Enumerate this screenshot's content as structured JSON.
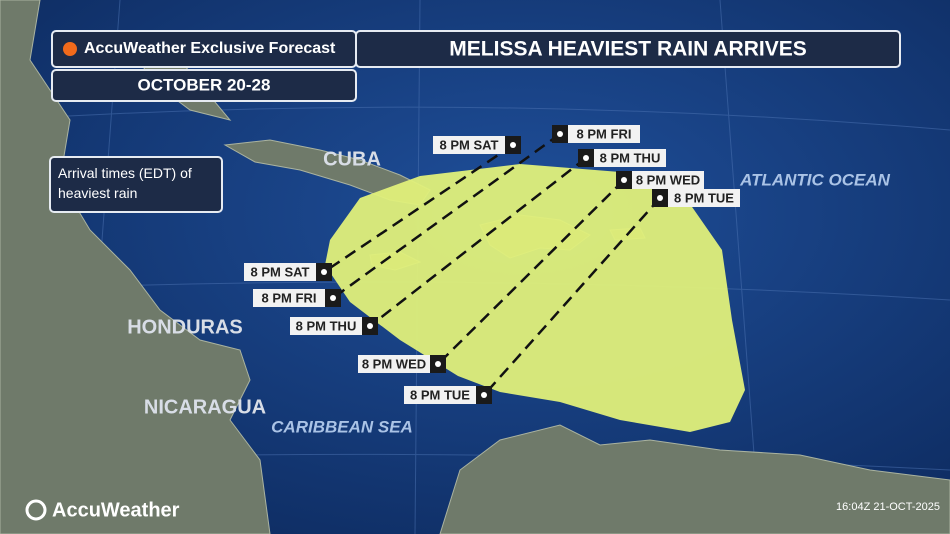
{
  "header": {
    "brand": "AccuWeather Exclusive Forecast",
    "title": "MELISSA HEAVIEST RAIN ARRIVES",
    "dates": "OCTOBER 20-28"
  },
  "legend_note": "Arrival times (EDT) of heaviest rain",
  "places": [
    "CUBA",
    "HONDURAS",
    "NICARAGUA",
    "ATLANTIC OCEAN",
    "CARIBBEAN SEA"
  ],
  "arrival_labels": {
    "north": [
      "8 PM SAT",
      "8 PM FRI",
      "8 PM THU",
      "8 PM WED",
      "8 PM TUE"
    ],
    "south": [
      "8 PM SAT",
      "8 PM FRI",
      "8 PM THU",
      "8 PM WED",
      "8 PM TUE"
    ]
  },
  "footer": {
    "logo": "AccuWeather",
    "timestamp": "16:04Z 21-OCT-2025"
  }
}
